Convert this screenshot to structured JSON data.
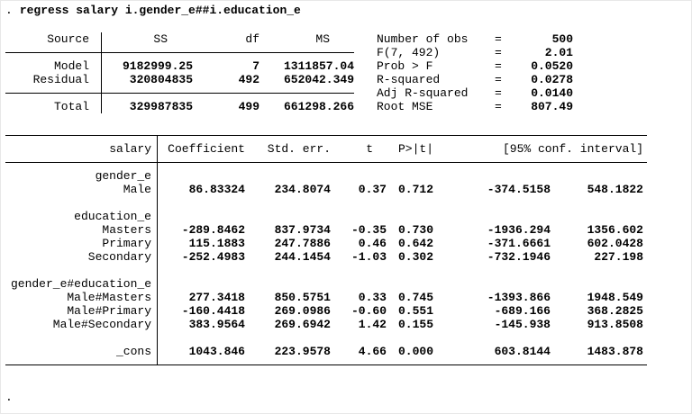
{
  "command": {
    "prompt": ".",
    "text": "regress salary i.gender_e##i.education_e"
  },
  "trailing_prompt": ".",
  "anova": {
    "col_headers": {
      "source": "Source",
      "ss": "SS",
      "df": "df",
      "ms": "MS"
    },
    "rows": [
      {
        "label": "Model",
        "ss": "9182999.25",
        "df": "7",
        "ms": "1311857.04"
      },
      {
        "label": "Residual",
        "ss": "320804835",
        "df": "492",
        "ms": "652042.349"
      },
      {
        "label": "Total",
        "ss": "329987835",
        "df": "499",
        "ms": "661298.266"
      }
    ]
  },
  "model_stats": [
    {
      "label": "Number of obs",
      "eq": "=",
      "value": "500"
    },
    {
      "label": "F(7, 492)",
      "eq": "=",
      "value": "2.01"
    },
    {
      "label": "Prob > F",
      "eq": "=",
      "value": "0.0520"
    },
    {
      "label": "R-squared",
      "eq": "=",
      "value": "0.0278"
    },
    {
      "label": "Adj R-squared",
      "eq": "=",
      "value": "0.0140"
    },
    {
      "label": "Root MSE",
      "eq": "=",
      "value": "807.49"
    }
  ],
  "coef_table": {
    "headers": {
      "depvar": "salary",
      "coef": "Coefficient",
      "se": "Std. err.",
      "t": "t",
      "p": "P>|t|",
      "ci": "[95% conf. interval]"
    },
    "rows": [
      {
        "label": "gender_e"
      },
      {
        "label": "Male",
        "coef": "86.83324",
        "se": "234.8074",
        "t": "0.37",
        "p": "0.712",
        "lo": "-374.5158",
        "hi": "548.1822"
      },
      {
        "label": "education_e"
      },
      {
        "label": "Masters",
        "coef": "-289.8462",
        "se": "837.9734",
        "t": "-0.35",
        "p": "0.730",
        "lo": "-1936.294",
        "hi": "1356.602"
      },
      {
        "label": "Primary",
        "coef": "115.1883",
        "se": "247.7886",
        "t": "0.46",
        "p": "0.642",
        "lo": "-371.6661",
        "hi": "602.0428"
      },
      {
        "label": "Secondary",
        "coef": "-252.4983",
        "se": "244.1454",
        "t": "-1.03",
        "p": "0.302",
        "lo": "-732.1946",
        "hi": "227.198"
      },
      {
        "label": "gender_e#education_e"
      },
      {
        "label": "Male#Masters",
        "coef": "277.3418",
        "se": "850.5751",
        "t": "0.33",
        "p": "0.745",
        "lo": "-1393.866",
        "hi": "1948.549"
      },
      {
        "label": "Male#Primary",
        "coef": "-160.4418",
        "se": "269.0986",
        "t": "-0.60",
        "p": "0.551",
        "lo": "-689.166",
        "hi": "368.2825"
      },
      {
        "label": "Male#Secondary",
        "coef": "383.9564",
        "se": "269.6942",
        "t": "1.42",
        "p": "0.155",
        "lo": "-145.938",
        "hi": "913.8508"
      },
      {
        "label": "_cons",
        "coef": "1043.846",
        "se": "223.9578",
        "t": "4.66",
        "p": "0.000",
        "lo": "603.8144",
        "hi": "1483.878"
      }
    ]
  }
}
